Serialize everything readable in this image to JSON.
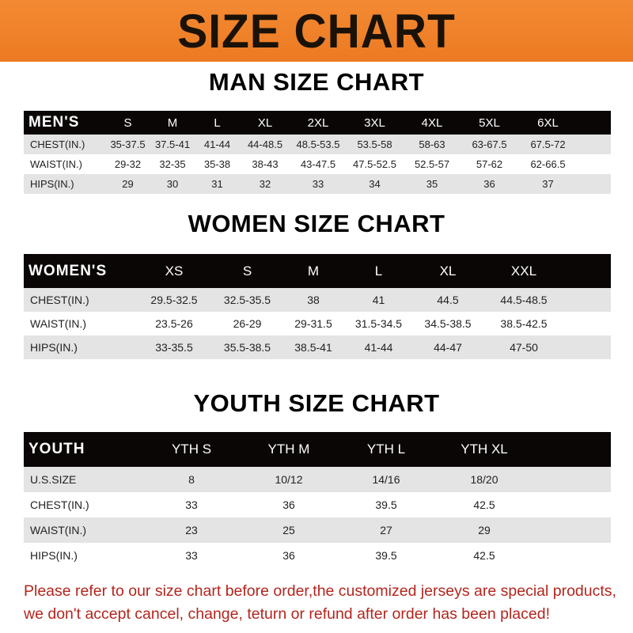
{
  "banner": {
    "title": "SIZE CHART",
    "color": "#ef8029"
  },
  "men": {
    "title": "MAN SIZE CHART",
    "header": "MEN'S",
    "sizes": [
      "S",
      "M",
      "L",
      "XL",
      "2XL",
      "3XL",
      "4XL",
      "5XL",
      "6XL"
    ],
    "rows": [
      {
        "label": "CHEST(IN.)",
        "values": [
          "35-37.5",
          "37.5-41",
          "41-44",
          "44-48.5",
          "48.5-53.5",
          "53.5-58",
          "58-63",
          "63-67.5",
          "67.5-72"
        ]
      },
      {
        "label": "WAIST(IN.)",
        "values": [
          "29-32",
          "32-35",
          "35-38",
          "38-43",
          "43-47.5",
          "47.5-52.5",
          "52.5-57",
          "57-62",
          "62-66.5"
        ]
      },
      {
        "label": "HIPS(IN.)",
        "values": [
          "29",
          "30",
          "31",
          "32",
          "33",
          "34",
          "35",
          "36",
          "37"
        ]
      }
    ]
  },
  "women": {
    "title": "WOMEN SIZE CHART",
    "header": "WOMEN'S",
    "sizes": [
      "XS",
      "S",
      "M",
      "L",
      "XL",
      "XXL"
    ],
    "rows": [
      {
        "label": "CHEST(IN.)",
        "values": [
          "29.5-32.5",
          "32.5-35.5",
          "38",
          "41",
          "44.5",
          "44.5-48.5"
        ]
      },
      {
        "label": "WAIST(IN.)",
        "values": [
          "23.5-26",
          "26-29",
          "29-31.5",
          "31.5-34.5",
          "34.5-38.5",
          "38.5-42.5"
        ]
      },
      {
        "label": "HIPS(IN.)",
        "values": [
          "33-35.5",
          "35.5-38.5",
          "38.5-41",
          "41-44",
          "44-47",
          "47-50"
        ]
      }
    ]
  },
  "youth": {
    "title": "YOUTH SIZE CHART",
    "header": "YOUTH",
    "sizes": [
      "YTH S",
      "YTH M",
      "YTH L",
      "YTH XL"
    ],
    "rows": [
      {
        "label": "U.S.SIZE",
        "values": [
          "8",
          "10/12",
          "14/16",
          "18/20"
        ]
      },
      {
        "label": "CHEST(IN.)",
        "values": [
          "33",
          "36",
          "39.5",
          "42.5"
        ]
      },
      {
        "label": "WAIST(IN.)",
        "values": [
          "23",
          "25",
          "27",
          "29"
        ]
      },
      {
        "label": "HIPS(IN.)",
        "values": [
          "33",
          "36",
          "39.5",
          "42.5"
        ]
      }
    ]
  },
  "notice": {
    "line1": "Please refer to our size chart before order,the customized jerseys are special products,",
    "line2": "we don't accept cancel, change, teturn or refund after order has been placed!",
    "color": "#b3261e"
  }
}
